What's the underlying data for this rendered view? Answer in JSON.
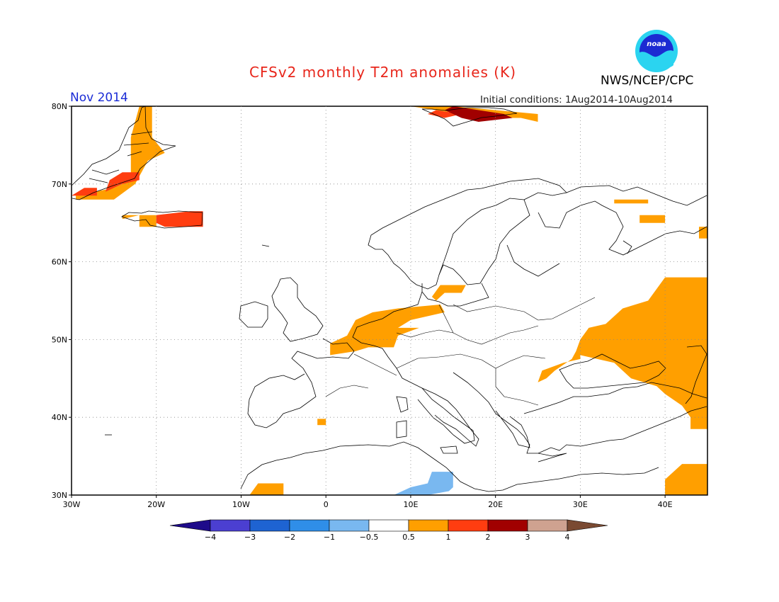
{
  "header": {
    "title": "CFSv2 monthly T2m anomalies (K)",
    "org": "NWS/NCEP/CPC",
    "month": "Nov 2014",
    "initial_conditions": "Initial conditions: 1Aug2014-10Aug2014",
    "logo_text": "noaa"
  },
  "map": {
    "region": "Europe",
    "lon_range": [
      -30,
      45
    ],
    "lat_range": [
      30,
      80
    ],
    "lon_labels": [
      "30W",
      "20W",
      "10W",
      "0",
      "10E",
      "20E",
      "30E",
      "40E"
    ],
    "lat_labels": [
      "30N",
      "40N",
      "50N",
      "60N",
      "70N",
      "80N"
    ],
    "grid": "dotted",
    "anomaly_patches": [
      {
        "name": "greenland-coast-west",
        "category": "0.5-1",
        "polygon": [
          [
            -29.5,
            68.5
          ],
          [
            -25,
            69.5
          ],
          [
            -23,
            70.5
          ],
          [
            -23,
            73
          ],
          [
            -23,
            76
          ],
          [
            -22,
            80
          ],
          [
            -20.5,
            80
          ],
          [
            -20.5,
            76
          ],
          [
            -19,
            74
          ],
          [
            -21,
            73
          ],
          [
            -22.5,
            70
          ],
          [
            -25,
            68
          ],
          [
            -29.5,
            68
          ]
        ]
      },
      {
        "name": "greenland-east-red",
        "category": "1-2",
        "polygon": [
          [
            -26,
            69
          ],
          [
            -24,
            70
          ],
          [
            -22,
            70.5
          ],
          [
            -22,
            71.5
          ],
          [
            -24,
            71.5
          ],
          [
            -25.5,
            70.5
          ]
        ]
      },
      {
        "name": "greenland-south-red",
        "category": "1-2",
        "polygon": [
          [
            -30,
            68.5
          ],
          [
            -28.5,
            69.5
          ],
          [
            -27,
            69.5
          ],
          [
            -27,
            68.5
          ]
        ]
      },
      {
        "name": "iceland-orange",
        "category": "0.5-1",
        "polygon": [
          [
            -24,
            65.5
          ],
          [
            -22,
            66
          ],
          [
            -22,
            64.5
          ],
          [
            -20,
            64.5
          ],
          [
            -20,
            66
          ],
          [
            -24,
            66
          ]
        ]
      },
      {
        "name": "iceland-red",
        "category": "1-2",
        "polygon": [
          [
            -20,
            66
          ],
          [
            -16,
            66.5
          ],
          [
            -14.5,
            66.5
          ],
          [
            -14.5,
            64.5
          ],
          [
            -19,
            64.5
          ],
          [
            -20,
            65
          ]
        ]
      },
      {
        "name": "svalbard-orange",
        "category": "0.5-1",
        "polygon": [
          [
            10,
            80
          ],
          [
            13,
            79.5
          ],
          [
            19,
            78.5
          ],
          [
            23,
            78.5
          ],
          [
            25,
            78
          ],
          [
            25,
            79
          ],
          [
            20,
            79.5
          ],
          [
            15,
            80
          ]
        ]
      },
      {
        "name": "svalbard-red",
        "category": "1-2",
        "polygon": [
          [
            13,
            79.5
          ],
          [
            16,
            79
          ],
          [
            14,
            78.5
          ],
          [
            12,
            79
          ]
        ]
      },
      {
        "name": "svalbard-darkred",
        "category": "2-3",
        "polygon": [
          [
            15,
            80
          ],
          [
            18,
            79.5
          ],
          [
            21,
            79
          ],
          [
            22,
            78.5
          ],
          [
            18,
            78
          ],
          [
            16,
            78.5
          ],
          [
            14,
            79.5
          ]
        ]
      },
      {
        "name": "benelux-orange",
        "category": "0.5-1",
        "polygon": [
          [
            3.5,
            52.5
          ],
          [
            5.5,
            53.5
          ],
          [
            8.5,
            54
          ],
          [
            13.5,
            54.5
          ],
          [
            14,
            53.5
          ],
          [
            10,
            52.5
          ],
          [
            8.5,
            51.5
          ],
          [
            11,
            51.5
          ],
          [
            8.5,
            50.5
          ],
          [
            8,
            49
          ],
          [
            5,
            49
          ],
          [
            3.5,
            48.5
          ],
          [
            0.5,
            48
          ],
          [
            0.5,
            49.5
          ],
          [
            2.5,
            50.5
          ]
        ]
      },
      {
        "name": "denmark-orange",
        "category": "0.5-1",
        "polygon": [
          [
            13,
            55
          ],
          [
            14,
            56
          ],
          [
            16,
            56
          ],
          [
            16.5,
            57
          ],
          [
            13.5,
            57
          ],
          [
            12.5,
            55.5
          ]
        ]
      },
      {
        "name": "russia-orange",
        "category": "0.5-1",
        "polygon": [
          [
            44,
            58
          ],
          [
            40,
            58
          ],
          [
            39,
            56.5
          ],
          [
            38,
            55
          ],
          [
            35,
            54
          ],
          [
            33,
            52
          ],
          [
            31,
            51.5
          ],
          [
            30,
            50
          ],
          [
            29.5,
            48.5
          ],
          [
            29,
            47.5
          ],
          [
            27,
            46
          ],
          [
            26,
            45
          ],
          [
            25,
            44.5
          ],
          [
            25.5,
            46
          ],
          [
            28,
            47
          ],
          [
            30,
            47.5
          ],
          [
            30,
            48
          ],
          [
            34,
            47
          ],
          [
            36,
            45
          ],
          [
            39,
            44
          ],
          [
            40,
            43
          ],
          [
            42,
            41.5
          ],
          [
            43,
            40
          ],
          [
            45,
            39
          ],
          [
            45,
            40.5
          ],
          [
            45,
            43
          ],
          [
            45,
            45
          ],
          [
            45,
            48
          ],
          [
            45,
            51
          ],
          [
            45,
            55
          ],
          [
            45,
            58
          ]
        ]
      },
      {
        "name": "russia-north-orange",
        "category": "0.5-1",
        "polygon": [
          [
            34,
            68
          ],
          [
            38,
            68
          ],
          [
            38,
            67.5
          ],
          [
            34,
            67.5
          ]
        ]
      },
      {
        "name": "russia-north-orange-2",
        "category": "0.5-1",
        "polygon": [
          [
            37,
            65
          ],
          [
            40,
            65
          ],
          [
            40,
            66
          ],
          [
            37,
            66
          ]
        ]
      },
      {
        "name": "caspian-east-orange",
        "category": "0.5-1",
        "polygon": [
          [
            44,
            63
          ],
          [
            45,
            63
          ],
          [
            45,
            64.5
          ],
          [
            44,
            64.5
          ]
        ]
      },
      {
        "name": "turkey-orange",
        "category": "0.5-1",
        "polygon": [
          [
            43,
            40
          ],
          [
            45,
            40
          ],
          [
            45,
            38.5
          ],
          [
            43,
            38.5
          ]
        ]
      },
      {
        "name": "mideast-orange",
        "category": "0.5-1",
        "polygon": [
          [
            40,
            30
          ],
          [
            45,
            30
          ],
          [
            45,
            34
          ],
          [
            42,
            34
          ],
          [
            40,
            32
          ]
        ]
      },
      {
        "name": "morocco-orange",
        "category": "0.5-1",
        "polygon": [
          [
            -9,
            30
          ],
          [
            -5,
            30
          ],
          [
            -5,
            31.5
          ],
          [
            -8,
            31.5
          ]
        ]
      },
      {
        "name": "spain-small-orange",
        "category": "0.5-1",
        "polygon": [
          [
            -1,
            39
          ],
          [
            0,
            39
          ],
          [
            0,
            39.8
          ],
          [
            -1,
            39.8
          ]
        ]
      },
      {
        "name": "libya-blue",
        "category": "-1--0.5",
        "polygon": [
          [
            8,
            30
          ],
          [
            12,
            30
          ],
          [
            14.5,
            30.5
          ],
          [
            15,
            31
          ],
          [
            15,
            33
          ],
          [
            12.5,
            33
          ],
          [
            12,
            31.5
          ],
          [
            10,
            31
          ],
          [
            9,
            30.5
          ]
        ]
      }
    ]
  },
  "colorbar": {
    "labels": [
      "-4",
      "-3",
      "-2",
      "-1",
      "-0.5",
      "0.5",
      "1",
      "2",
      "3",
      "4"
    ],
    "colors": [
      "#1e0b8a",
      "#4b3fd1",
      "#1e63d2",
      "#2f8ee8",
      "#79b8f0",
      "#ffffff",
      "#ff9f00",
      "#ff3d10",
      "#a10000",
      "#cfa290",
      "#7a4a32"
    ]
  }
}
